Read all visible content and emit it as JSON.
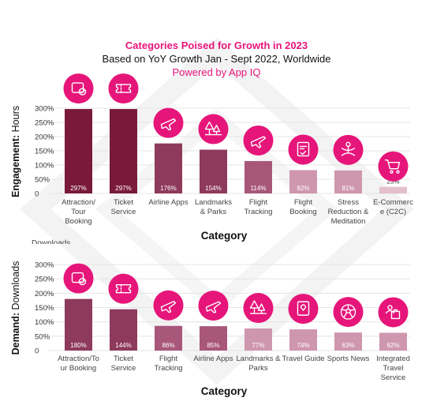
{
  "header": {
    "title": "Categories Poised for Growth in 2023",
    "subtitle": "Based on YoY Growth Jan - Sept 2022, Worldwide",
    "powered_by": "Powered by App IQ"
  },
  "partial_label": "Downloads",
  "colors": {
    "accent": "#e6157a",
    "bar_dark": "#7a1a3b",
    "bar_mid": "#8e3a5c",
    "bar_soft": "#a8577a",
    "bar_light": "#cf97ae",
    "bar_pale": "#e3bfcd",
    "grid": "#e4e4e4"
  },
  "chart_data": [
    {
      "type": "bar",
      "ylabel_bold": "Engagement:",
      "ylabel_rest": " Hours",
      "xlabel": "Category",
      "ylim": [
        0,
        300
      ],
      "yticks": [
        "0",
        "50%",
        "100%",
        "150%",
        "200%",
        "250%",
        "300%"
      ],
      "categories": [
        [
          "Attraction/",
          "Tour",
          "Booking"
        ],
        [
          "Ticket",
          "Service"
        ],
        [
          "Airline Apps"
        ],
        [
          "Landmarks",
          "& Parks"
        ],
        [
          "Flight",
          "Tracking"
        ],
        [
          "Flight",
          "Booking"
        ],
        [
          "Stress",
          "Reduction &",
          "Meditation"
        ],
        [
          "E-Commerc",
          "e (C2C)"
        ]
      ],
      "values": [
        297,
        297,
        176,
        154,
        114,
        82,
        81,
        23
      ],
      "value_labels": [
        "297%",
        "297%",
        "176%",
        "154%",
        "114%",
        "82%",
        "81%",
        "23%"
      ],
      "icons": [
        "ticket-check-icon",
        "ticket-icon",
        "plane-icon",
        "trees-icon",
        "plane-icon",
        "booking-check-icon",
        "meditation-icon",
        "shopping-cart-icon"
      ],
      "grid": true
    },
    {
      "type": "bar",
      "ylabel_bold": "Demand:",
      "ylabel_rest": " Downloads",
      "xlabel": "Category",
      "ylim": [
        0,
        300
      ],
      "yticks": [
        "0",
        "50%",
        "100%",
        "150%",
        "200%",
        "250%",
        "300%"
      ],
      "categories": [
        [
          "Attraction/To",
          "ur Booking"
        ],
        [
          "Ticket",
          "Service"
        ],
        [
          "Flight",
          "Tracking"
        ],
        [
          "Airline Apps"
        ],
        [
          "Landmarks &",
          "Parks"
        ],
        [
          "Travel Guide"
        ],
        [
          "Sports News"
        ],
        [
          "Integrated",
          "Travel",
          "Service"
        ]
      ],
      "values": [
        180,
        144,
        86,
        85,
        77,
        74,
        63,
        62
      ],
      "value_labels": [
        "180%",
        "144%",
        "86%",
        "85%",
        "77%",
        "74%",
        "63%",
        "62%"
      ],
      "icons": [
        "ticket-check-icon",
        "ticket-icon",
        "plane-icon",
        "plane-icon",
        "trees-icon",
        "map-icon",
        "ball-icon",
        "travel-service-icon"
      ],
      "grid": true
    }
  ]
}
